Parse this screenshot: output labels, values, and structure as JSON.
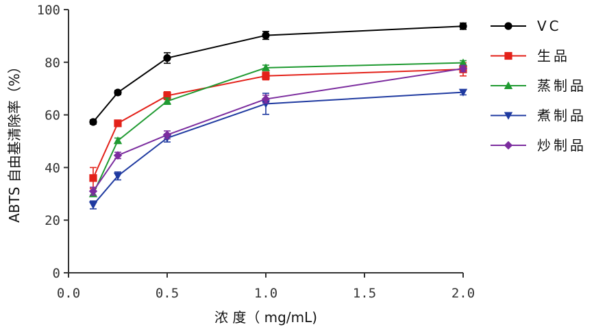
{
  "chart_data": {
    "type": "line",
    "xlabel": "浓 度（ mg/mL)",
    "ylabel": "ABTS 自由基清除率（%）",
    "xlim": [
      0,
      2.0
    ],
    "ylim": [
      0,
      100
    ],
    "x_ticks": [
      0,
      0.5,
      1.0,
      1.5,
      2.0
    ],
    "x_tick_labels": [
      "0.0",
      "0.5",
      "1.0",
      "1.5",
      "2.0"
    ],
    "y_ticks": [
      0,
      20,
      40,
      60,
      80,
      100
    ],
    "y_tick_labels": [
      "0",
      "20",
      "40",
      "60",
      "80",
      "100"
    ],
    "grid": false,
    "legend_position": "right",
    "x": [
      0.125,
      0.25,
      0.5,
      1.0,
      2.0
    ],
    "series": [
      {
        "name": "VC",
        "color": "#000000",
        "marker": "circle",
        "values": [
          57.3,
          68.5,
          81.6,
          90.2,
          93.7
        ],
        "errors": [
          0.8,
          0.8,
          2.0,
          1.5,
          1.2
        ]
      },
      {
        "name": "生品",
        "color": "#e32119",
        "marker": "square",
        "values": [
          36.0,
          56.8,
          67.3,
          74.8,
          77.3
        ],
        "errors": [
          4.0,
          1.0,
          1.5,
          1.5,
          2.5
        ]
      },
      {
        "name": "蒸制品",
        "color": "#1f9a31",
        "marker": "triangle-up",
        "values": [
          30.0,
          50.2,
          65.2,
          77.9,
          79.8
        ],
        "errors": [
          1.0,
          1.0,
          1.2,
          1.0,
          0.8
        ]
      },
      {
        "name": "煮制品",
        "color": "#1f3aa0",
        "marker": "triangle-down",
        "values": [
          25.8,
          36.8,
          51.2,
          64.2,
          68.6
        ],
        "errors": [
          1.5,
          1.5,
          1.5,
          4.0,
          1.0
        ]
      },
      {
        "name": "炒制品",
        "color": "#7b2c9e",
        "marker": "diamond",
        "values": [
          31.0,
          44.6,
          52.4,
          66.0,
          77.6
        ],
        "errors": [
          1.5,
          1.2,
          1.5,
          1.5,
          1.2
        ]
      }
    ]
  }
}
